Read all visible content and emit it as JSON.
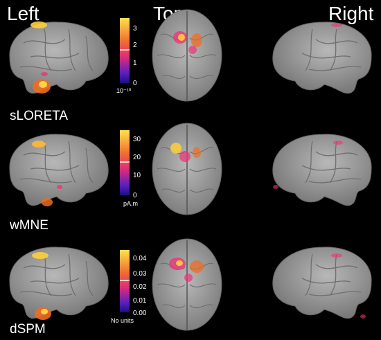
{
  "columns": {
    "left": "Left",
    "top": "Top",
    "right": "Right"
  },
  "rows": [
    {
      "method": "sLORETA",
      "colorbar": {
        "ticks": [
          "3",
          "2",
          "1",
          "0"
        ],
        "unit": "10⁻¹⁰",
        "marker_fraction": 0.55
      }
    },
    {
      "method": "wMNE",
      "colorbar": {
        "ticks": [
          "30",
          "20",
          "10",
          "0"
        ],
        "unit": "pA.m",
        "marker_fraction": 0.55
      }
    },
    {
      "method": "dSPM",
      "colorbar": {
        "ticks": [
          "0.04",
          "0.03",
          "0.02",
          "0.01",
          "0.00"
        ],
        "unit": "No units",
        "marker_fraction": 0.55
      }
    }
  ],
  "colors": {
    "background": "#000000",
    "brain": "#9a9a9a",
    "activation_high": "#ffe14a",
    "activation_mid": "#f0307a",
    "activation_low": "#3a1fd0"
  }
}
